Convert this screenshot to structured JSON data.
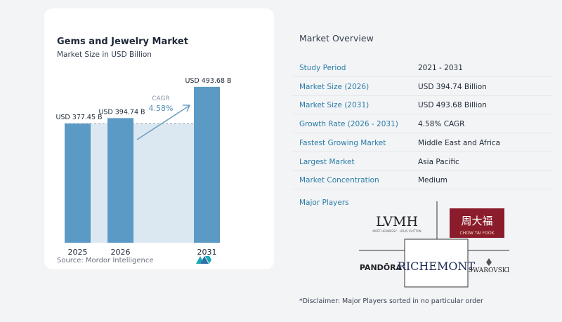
{
  "chart_data": {
    "type": "bar",
    "title": "Gems and Jewelry Market",
    "subtitle": "Market Size in USD Billion",
    "categories": [
      "2025",
      "2026",
      "2031"
    ],
    "values": [
      377.45,
      394.74,
      493.68
    ],
    "value_labels": [
      "USD 377.45 B",
      "USD 394.74 B",
      "USD 493.68 B"
    ],
    "cagr_label": "CAGR",
    "cagr_value": "4.58%",
    "source": "Source:  Mordor Intelligence",
    "ylim": [
      0,
      520
    ],
    "colors": {
      "bar": "#5b9ac4",
      "band": "#dbe8f1",
      "accent": "#6b9fc0"
    }
  },
  "overview": {
    "title": "Market Overview",
    "rows": [
      {
        "label": "Study Period",
        "value": "2021 - 2031"
      },
      {
        "label": "Market Size (2026)",
        "value": "USD 394.74 Billion"
      },
      {
        "label": "Market Size (2031)",
        "value": "USD 493.68 Billion"
      },
      {
        "label": "Growth Rate (2026 - 2031)",
        "value": "4.58% CAGR"
      },
      {
        "label": "Fastest Growing Market",
        "value": "Middle East and Africa"
      },
      {
        "label": "Largest Market",
        "value": "Asia Pacific"
      },
      {
        "label": "Market Concentration",
        "value": "Medium"
      }
    ],
    "players_title": "Major Players",
    "players": {
      "lvmh": "LVMH",
      "lvmh_sub": "MOËT HENNESSY . LOUIS VUITTON",
      "chow_cn": "周大福",
      "chow_en": "CHOW TAI FOOK",
      "pandora": "PANDŌRA",
      "richemont": "RICHEMONT",
      "swarovski": "SWAROVSKI"
    },
    "disclaimer": "*Disclaimer: Major Players sorted in no particular order"
  }
}
